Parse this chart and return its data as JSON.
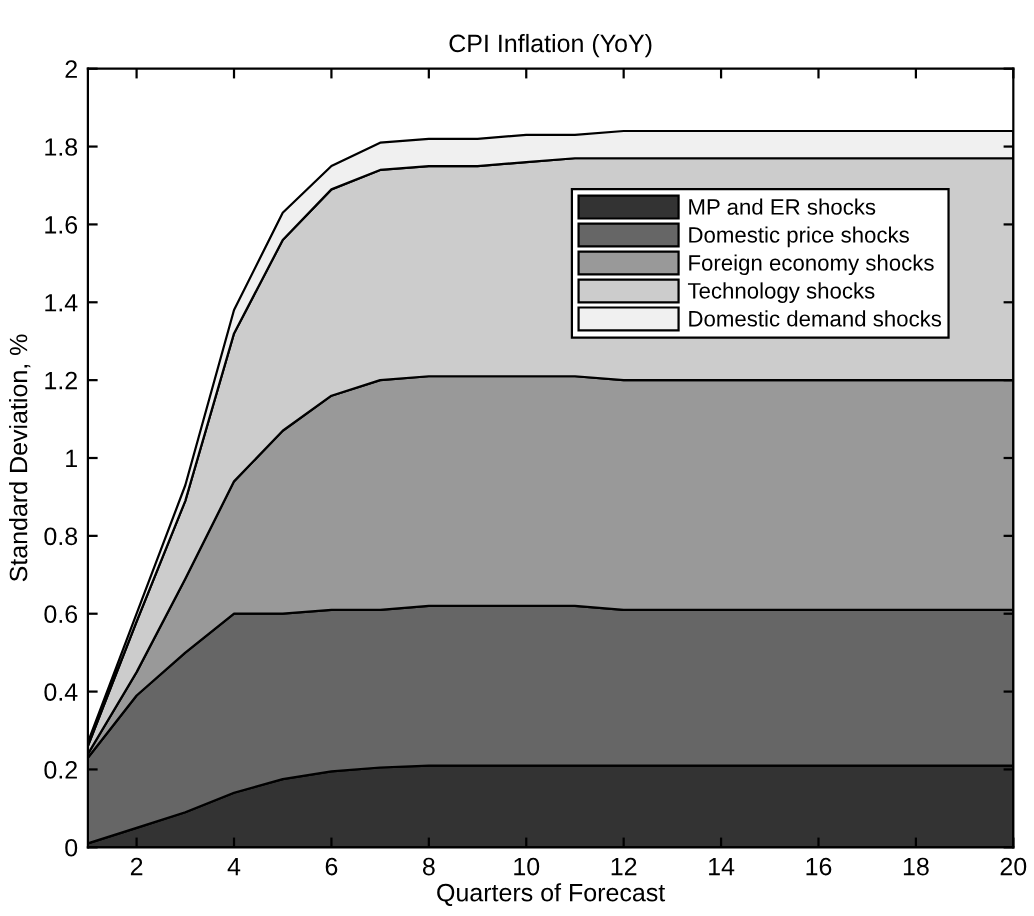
{
  "chart_data": {
    "type": "area",
    "stacked": true,
    "title": "CPI Inflation (YoY)",
    "xlabel": "Quarters of Forecast",
    "ylabel": "Standard Deviation, %",
    "x": [
      1,
      2,
      3,
      4,
      5,
      6,
      7,
      8,
      9,
      10,
      11,
      12,
      13,
      14,
      15,
      16,
      17,
      18,
      19,
      20
    ],
    "series": [
      {
        "name": "MP and ER shocks",
        "color": "#333333",
        "values": [
          0.01,
          0.05,
          0.09,
          0.14,
          0.175,
          0.195,
          0.205,
          0.21,
          0.21,
          0.21,
          0.21,
          0.21,
          0.21,
          0.21,
          0.21,
          0.21,
          0.21,
          0.21,
          0.21,
          0.21
        ]
      },
      {
        "name": "Domestic price shocks",
        "color": "#666666",
        "values": [
          0.22,
          0.34,
          0.41,
          0.46,
          0.425,
          0.415,
          0.405,
          0.41,
          0.41,
          0.41,
          0.41,
          0.4,
          0.4,
          0.4,
          0.4,
          0.4,
          0.4,
          0.4,
          0.4,
          0.4
        ]
      },
      {
        "name": "Foreign economy shocks",
        "color": "#999999",
        "values": [
          0.01,
          0.06,
          0.19,
          0.34,
          0.47,
          0.55,
          0.59,
          0.59,
          0.59,
          0.59,
          0.59,
          0.59,
          0.59,
          0.59,
          0.59,
          0.59,
          0.59,
          0.59,
          0.59,
          0.59
        ]
      },
      {
        "name": "Technology shocks",
        "color": "#cccccc",
        "values": [
          0.02,
          0.13,
          0.2,
          0.38,
          0.49,
          0.53,
          0.54,
          0.54,
          0.54,
          0.55,
          0.56,
          0.57,
          0.57,
          0.57,
          0.57,
          0.57,
          0.57,
          0.57,
          0.57,
          0.57
        ]
      },
      {
        "name": "Domestic demand shocks",
        "color": "#f0f0f0",
        "values": [
          0.01,
          0.02,
          0.04,
          0.06,
          0.07,
          0.06,
          0.07,
          0.07,
          0.07,
          0.07,
          0.06,
          0.07,
          0.07,
          0.07,
          0.07,
          0.07,
          0.07,
          0.07,
          0.07,
          0.07
        ]
      }
    ],
    "xlim": [
      1,
      20
    ],
    "ylim": [
      0,
      2
    ],
    "xticks": [
      2,
      4,
      6,
      8,
      10,
      12,
      14,
      16,
      18,
      20
    ],
    "yticks": [
      0,
      0.2,
      0.4,
      0.6,
      0.8,
      1,
      1.2,
      1.4,
      1.6,
      1.8,
      2
    ],
    "grid": false,
    "legend": "right"
  }
}
